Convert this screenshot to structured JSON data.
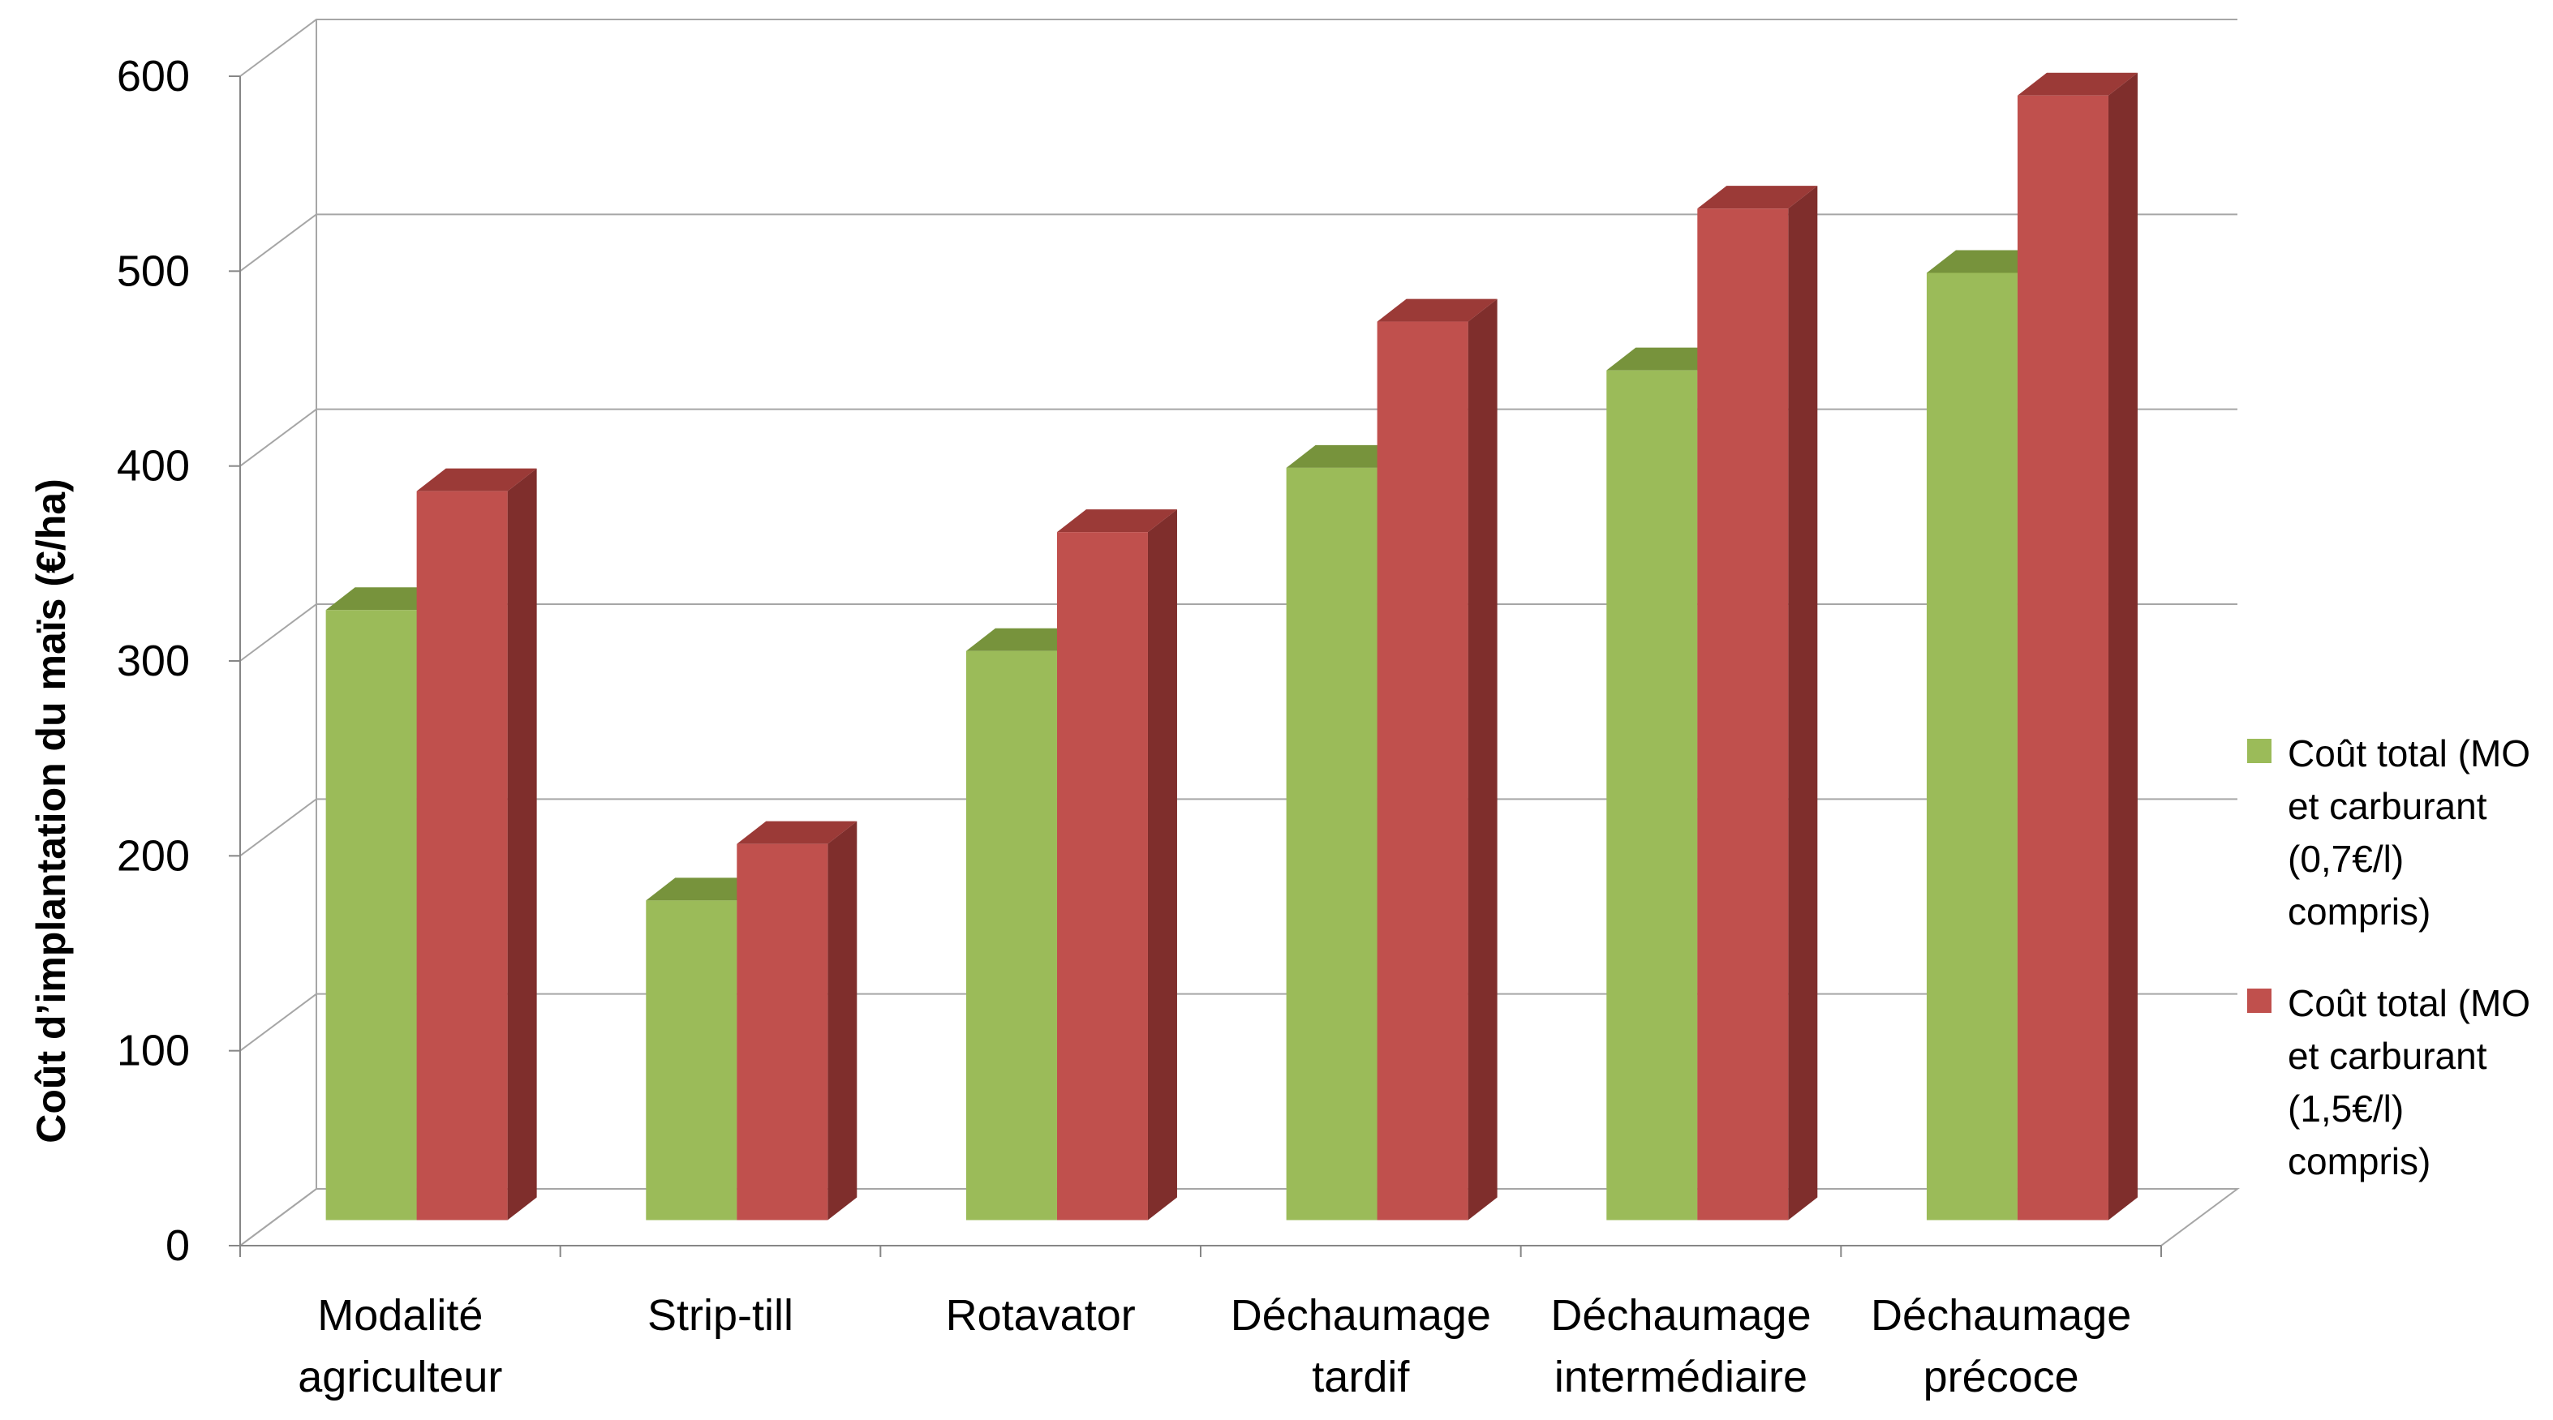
{
  "chart_data": {
    "type": "bar",
    "style": "3d-clustered",
    "title": "",
    "xlabel": "",
    "ylabel": "Coût d’implantation du maïs  (€/ha)",
    "ylim": [
      0,
      600
    ],
    "yticks": [
      "0",
      "100",
      "200",
      "300",
      "400",
      "500",
      "600"
    ],
    "grid": true,
    "legend_position": "right",
    "categories": [
      [
        "Modalité",
        "agriculteur"
      ],
      [
        "Strip-till"
      ],
      [
        "Rotavator"
      ],
      [
        "Déchaumage",
        "tardif"
      ],
      [
        "Déchaumage",
        "intermédiaire"
      ],
      [
        "Déchaumage",
        "précoce"
      ]
    ],
    "series": [
      {
        "name": "Coût total (MO et carburant (0,7€/l) compris)",
        "legend_lines": [
          "Coût total (MO",
          "et carburant",
          "(0,7€/l)",
          "compris)"
        ],
        "color": "#9BBB59",
        "top_color": "#77933C",
        "side_color": "#6E8A36",
        "values": [
          313,
          164,
          292,
          386,
          436,
          486
        ]
      },
      {
        "name": "Coût total (MO et carburant (1,5€/l) compris)",
        "legend_lines": [
          "Coût total (MO",
          "et carburant",
          "(1,5€/l)",
          "compris)"
        ],
        "color": "#C0504D",
        "top_color": "#9B3A37",
        "side_color": "#7F2E2C",
        "values": [
          374,
          193,
          353,
          461,
          519,
          577
        ]
      }
    ],
    "colors": {
      "gridline": "#A6A6A6",
      "axis": "#868686"
    }
  }
}
